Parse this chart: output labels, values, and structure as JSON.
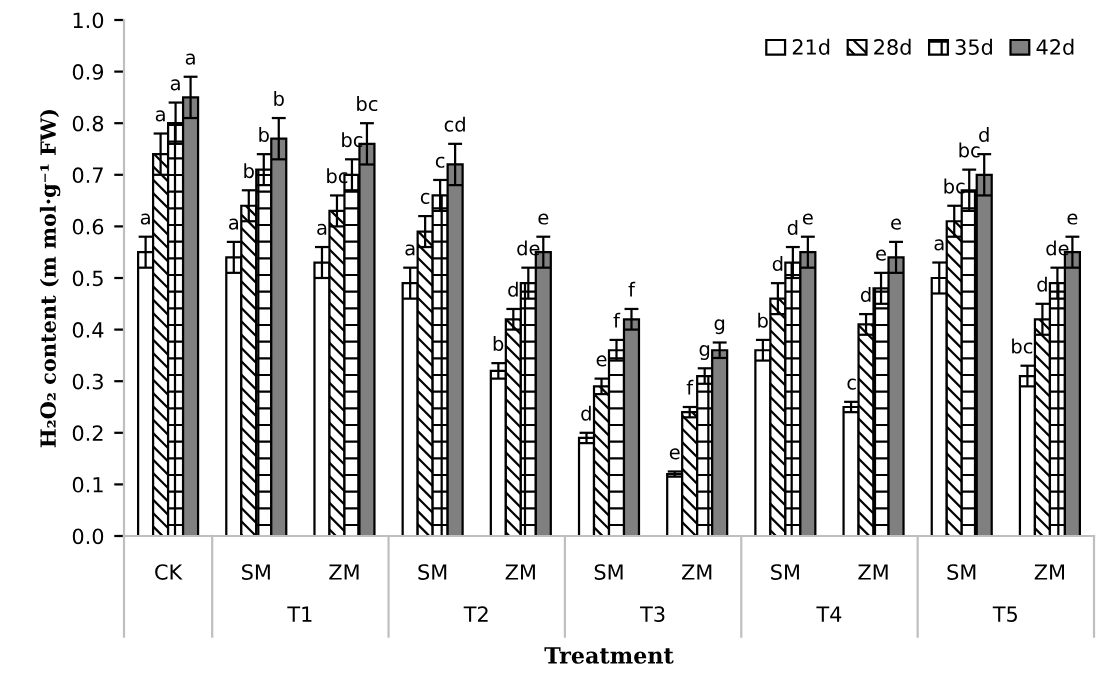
{
  "chart_data": {
    "type": "bar",
    "xlabel": "Treatment",
    "ylabel": "H₂O₂ content (m mol·g⁻¹ FW)",
    "categories": [
      "CK",
      "SM",
      "ZM",
      "SM",
      "ZM",
      "SM",
      "ZM",
      "SM",
      "ZM",
      "SM",
      "ZM"
    ],
    "annotations": [
      "T1",
      "T2",
      "T3",
      "T4",
      "T5"
    ],
    "series": [
      {
        "name": "21d",
        "color": "#ffffff",
        "values": [
          0.55,
          0.54,
          0.53,
          0.49,
          0.32,
          0.19,
          0.12,
          0.36,
          0.25,
          0.5,
          0.31
        ],
        "errors": [
          0.03,
          0.03,
          0.03,
          0.03,
          0.015,
          0.01,
          0.005,
          0.02,
          0.01,
          0.03,
          0.02
        ],
        "value_labels": [
          "a",
          "a",
          "a",
          "a",
          "b",
          "d",
          "e",
          "b",
          "c",
          "a",
          "bc"
        ]
      },
      {
        "name": "28d",
        "color": "#000000",
        "values": [
          0.74,
          0.64,
          0.63,
          0.59,
          0.42,
          0.29,
          0.24,
          0.46,
          0.41,
          0.61,
          0.42
        ],
        "errors": [
          0.04,
          0.03,
          0.03,
          0.03,
          0.02,
          0.015,
          0.01,
          0.03,
          0.02,
          0.03,
          0.03
        ],
        "value_labels": [
          "a",
          "b",
          "bc",
          "c",
          "d",
          "e",
          "f",
          "d",
          "d",
          "bc",
          "d"
        ]
      },
      {
        "name": "35d",
        "color": "#000000",
        "values": [
          0.8,
          0.71,
          0.7,
          0.66,
          0.49,
          0.36,
          0.31,
          0.53,
          0.48,
          0.67,
          0.49
        ],
        "errors": [
          0.04,
          0.03,
          0.03,
          0.03,
          0.03,
          0.02,
          0.015,
          0.03,
          0.03,
          0.04,
          0.03
        ],
        "value_labels": [
          "a",
          "b",
          "bc",
          "c",
          "de",
          "f",
          "g",
          "d",
          "e",
          "bc",
          "de"
        ]
      },
      {
        "name": "42d",
        "color": "#808080",
        "values": [
          0.85,
          0.77,
          0.76,
          0.72,
          0.55,
          0.42,
          0.36,
          0.55,
          0.54,
          0.7,
          0.55
        ],
        "errors": [
          0.04,
          0.04,
          0.04,
          0.04,
          0.03,
          0.02,
          0.015,
          0.03,
          0.03,
          0.04,
          0.03
        ],
        "value_labels": [
          "a",
          "b",
          "bc",
          "cd",
          "e",
          "f",
          "g",
          "e",
          "e",
          "d",
          "e"
        ]
      }
    ],
    "ylim": [
      0,
      1.0
    ],
    "yticks": [
      {
        "value": 0,
        "label": "0.0"
      },
      {
        "value": 0.1,
        "label": "0.1"
      },
      {
        "value": 0.2,
        "label": "0.2"
      },
      {
        "value": 0.3,
        "label": "0.3"
      },
      {
        "value": 0.4,
        "label": "0.4"
      },
      {
        "value": 0.5,
        "label": "0.5"
      },
      {
        "value": 0.6,
        "label": "0.6"
      },
      {
        "value": 0.7,
        "label": "0.7"
      },
      {
        "value": 0.8,
        "label": "0.8"
      },
      {
        "value": 0.9,
        "label": "0.9"
      },
      {
        "value": 1.0,
        "label": "1.0"
      }
    ],
    "grid": false,
    "legend": "top right"
  }
}
